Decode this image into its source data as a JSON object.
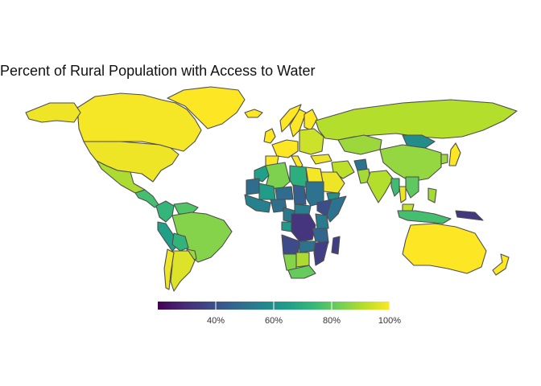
{
  "title": "Percent of Rural Population with Access to Water",
  "legend": {
    "position": "bottom",
    "min": 20,
    "max": 100,
    "ticks": [
      {
        "value": 40,
        "label": "40%"
      },
      {
        "value": 60,
        "label": "60%"
      },
      {
        "value": 80,
        "label": "80%"
      },
      {
        "value": 100,
        "label": "100%"
      }
    ],
    "colors": [
      "#440154",
      "#482878",
      "#3e4a89",
      "#31688e",
      "#26828e",
      "#1f9e89",
      "#35b779",
      "#6ece58",
      "#b5de2b",
      "#fde725"
    ]
  },
  "regions": [
    {
      "name": "Canada",
      "value": 99
    },
    {
      "name": "United States",
      "value": 98
    },
    {
      "name": "Alaska",
      "value": 98
    },
    {
      "name": "Greenland",
      "value": 100
    },
    {
      "name": "Mexico",
      "value": 90
    },
    {
      "name": "Central America",
      "value": 76
    },
    {
      "name": "Colombia",
      "value": 73
    },
    {
      "name": "Venezuela",
      "value": 78
    },
    {
      "name": "Brazil",
      "value": 85
    },
    {
      "name": "Peru",
      "value": 65
    },
    {
      "name": "Bolivia",
      "value": 72
    },
    {
      "name": "Paraguay",
      "value": 88
    },
    {
      "name": "Argentina",
      "value": 96
    },
    {
      "name": "Chile",
      "value": 98
    },
    {
      "name": "Iceland",
      "value": 100
    },
    {
      "name": "Norway",
      "value": 100
    },
    {
      "name": "Sweden",
      "value": 100
    },
    {
      "name": "Finland",
      "value": 100
    },
    {
      "name": "United Kingdom",
      "value": 100
    },
    {
      "name": "Western Europe",
      "value": 100
    },
    {
      "name": "Spain",
      "value": 100
    },
    {
      "name": "Italy",
      "value": 100
    },
    {
      "name": "Eastern Europe",
      "value": 94
    },
    {
      "name": "Russia",
      "value": 91
    },
    {
      "name": "Kazakhstan",
      "value": 88
    },
    {
      "name": "Mongolia",
      "value": 59
    },
    {
      "name": "China",
      "value": 87
    },
    {
      "name": "Turkey",
      "value": 98
    },
    {
      "name": "Iran",
      "value": 92
    },
    {
      "name": "Saudi Arabia",
      "value": 98
    },
    {
      "name": "Yemen",
      "value": 60
    },
    {
      "name": "Afghanistan",
      "value": 50
    },
    {
      "name": "Pakistan",
      "value": 89
    },
    {
      "name": "India",
      "value": 91
    },
    {
      "name": "Myanmar",
      "value": 75
    },
    {
      "name": "Thailand",
      "value": 98
    },
    {
      "name": "Indochina",
      "value": 80
    },
    {
      "name": "Malaysia",
      "value": 93
    },
    {
      "name": "Indonesia",
      "value": 76
    },
    {
      "name": "Papua New Guinea",
      "value": 33
    },
    {
      "name": "Philippines",
      "value": 89
    },
    {
      "name": "Japan",
      "value": 100
    },
    {
      "name": "Korea",
      "value": 88
    },
    {
      "name": "Australia",
      "value": 100
    },
    {
      "name": "New Zealand",
      "value": 100
    },
    {
      "name": "Morocco",
      "value": 65
    },
    {
      "name": "Algeria",
      "value": 84
    },
    {
      "name": "Libya",
      "value": 70
    },
    {
      "name": "Egypt",
      "value": 99
    },
    {
      "name": "Mauritania",
      "value": 48
    },
    {
      "name": "Mali",
      "value": 64
    },
    {
      "name": "Niger",
      "value": 48
    },
    {
      "name": "Chad",
      "value": 44
    },
    {
      "name": "Sudan",
      "value": 50
    },
    {
      "name": "Ethiopia",
      "value": 39
    },
    {
      "name": "Somalia",
      "value": 50
    },
    {
      "name": "West Africa",
      "value": 55
    },
    {
      "name": "Nigeria",
      "value": 49
    },
    {
      "name": "Central African Republic",
      "value": 54
    },
    {
      "name": "Cameroon",
      "value": 52
    },
    {
      "name": "Gabon",
      "value": 63
    },
    {
      "name": "DR Congo",
      "value": 32
    },
    {
      "name": "Kenya",
      "value": 53
    },
    {
      "name": "Tanzania",
      "value": 46
    },
    {
      "name": "Angola",
      "value": 38
    },
    {
      "name": "Zambia",
      "value": 50
    },
    {
      "name": "Mozambique",
      "value": 35
    },
    {
      "name": "Namibia",
      "value": 85
    },
    {
      "name": "Botswana",
      "value": 90
    },
    {
      "name": "South Africa",
      "value": 81
    },
    {
      "name": "Madagascar",
      "value": 35
    }
  ]
}
